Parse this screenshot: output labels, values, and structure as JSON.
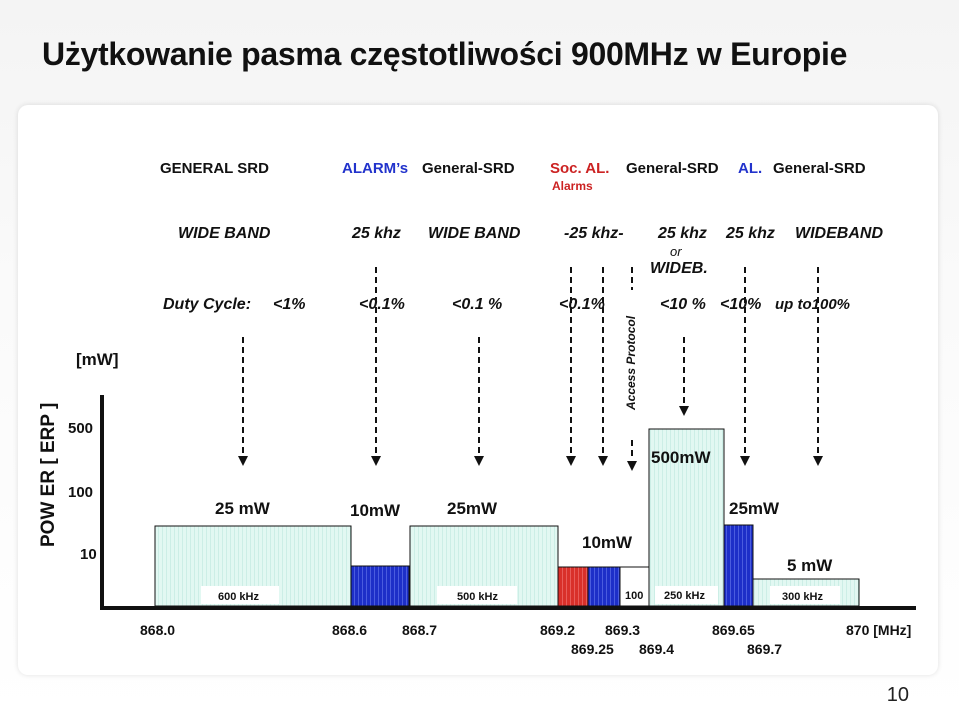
{
  "title": "Użytkowanie pasma częstotliwości 900MHz w Europie",
  "page_number": "10",
  "categories_row": {
    "general_srd_1": "GENERAL SRD",
    "alarms": "ALARM’s",
    "general_srd_2": "General-SRD",
    "soc_al": "Soc. AL.",
    "general_srd_3": "General-SRD",
    "al": "AL.",
    "general_srd_4": "General-SRD",
    "alarms_sub": "Alarms"
  },
  "bandwidth_row": {
    "wide_band_1": "WIDE BAND",
    "khz25_1": "25 khz",
    "wide_band_2": "WIDE BAND",
    "khz25_2": "-25 khz-",
    "khz25_3": "25 khz",
    "khz25_4": "25 khz",
    "wideband": "WIDEBAND",
    "or": "or",
    "wideb": "WIDEB."
  },
  "duty_row": {
    "label": "Duty Cycle:",
    "d1": "<1%",
    "d2": "<0.1%",
    "d3": "<0.1 %",
    "d4": "<0.1%",
    "d5": "<10 %",
    "d6": "<10%",
    "d7": "up to100%"
  },
  "access_protocol": "Access Protocol",
  "y_axis": {
    "label": "POW ER  [ ERP ]",
    "unit": "[mW]",
    "ticks": [
      "500",
      "100",
      "10"
    ]
  },
  "power_labels": {
    "p1": "25 mW",
    "p2": "10mW",
    "p3": "25mW",
    "p4": "10mW",
    "p5": "500mW",
    "p6": "25mW",
    "p7": "5 mW"
  },
  "bandwidth_labels": {
    "b1": "600 kHz",
    "b2": "500 kHz",
    "b3": "100",
    "b4": "250 kHz",
    "b5": "300 kHz"
  },
  "x_axis": {
    "ticks_top": [
      "868.0",
      "868.6",
      "868.7",
      "869.2",
      "869.3",
      "869.65",
      "870 [MHz]"
    ],
    "ticks_bottom": [
      "869.25",
      "869.4",
      "869.7"
    ]
  },
  "colors": {
    "wideband_fill": "#dff7f1",
    "narrow_blue": "#1d2fc8",
    "social_red": "#d9302a",
    "arrow": "#111111",
    "alarm_text": "#2233cc",
    "soc_text": "#cc2222"
  }
}
